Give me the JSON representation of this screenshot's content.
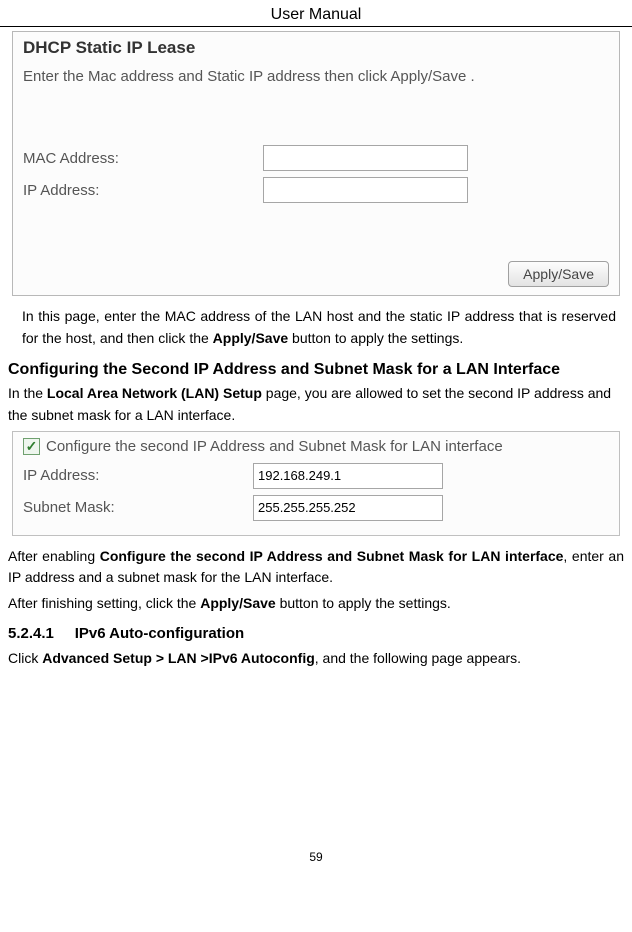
{
  "doc": {
    "header": "User Manual",
    "page_number": "59"
  },
  "panel1": {
    "title": "DHCP Static IP Lease",
    "instruction": "Enter the Mac address and Static IP address then click Apply/Save .",
    "mac_label": "MAC Address:",
    "ip_label": "IP Address:",
    "mac_value": "",
    "ip_value": "",
    "apply_label": "Apply/Save"
  },
  "para1_pre": "In this page, enter the MAC address of the LAN host and the static IP address that is reserved for the host, and then click the ",
  "para1_bold": "Apply/Save",
  "para1_post": " button to apply the settings.",
  "section_head": "Configuring the Second IP Address and Subnet Mask for a LAN Interface",
  "para2_pre": "In the ",
  "para2_bold": "Local Area Network (LAN) Setup",
  "para2_post": " page, you are allowed to set the second IP address and the subnet mask for a LAN interface.",
  "panel2": {
    "chk_label": "Configure the second IP Address and Subnet Mask for LAN interface",
    "chk_checked": true,
    "ip_label": "IP Address:",
    "ip_value": "192.168.249.1",
    "mask_label": "Subnet Mask:",
    "mask_value": "255.255.255.252"
  },
  "para3_pre": "After enabling ",
  "para3_bold": "Configure the second IP Address and Subnet Mask for LAN interface",
  "para3_post": ", enter an IP address and a subnet mask for the LAN interface.",
  "para4_pre": "After finishing setting, click the ",
  "para4_bold": "Apply/Save",
  "para4_post": " button to apply the settings.",
  "sub_number": "5.2.4.1",
  "sub_title": "IPv6 Auto-configuration",
  "para5_pre": "Click ",
  "para5_bold": "Advanced Setup > LAN >IPv6 Autoconfig",
  "para5_post": ", and the following page appears."
}
